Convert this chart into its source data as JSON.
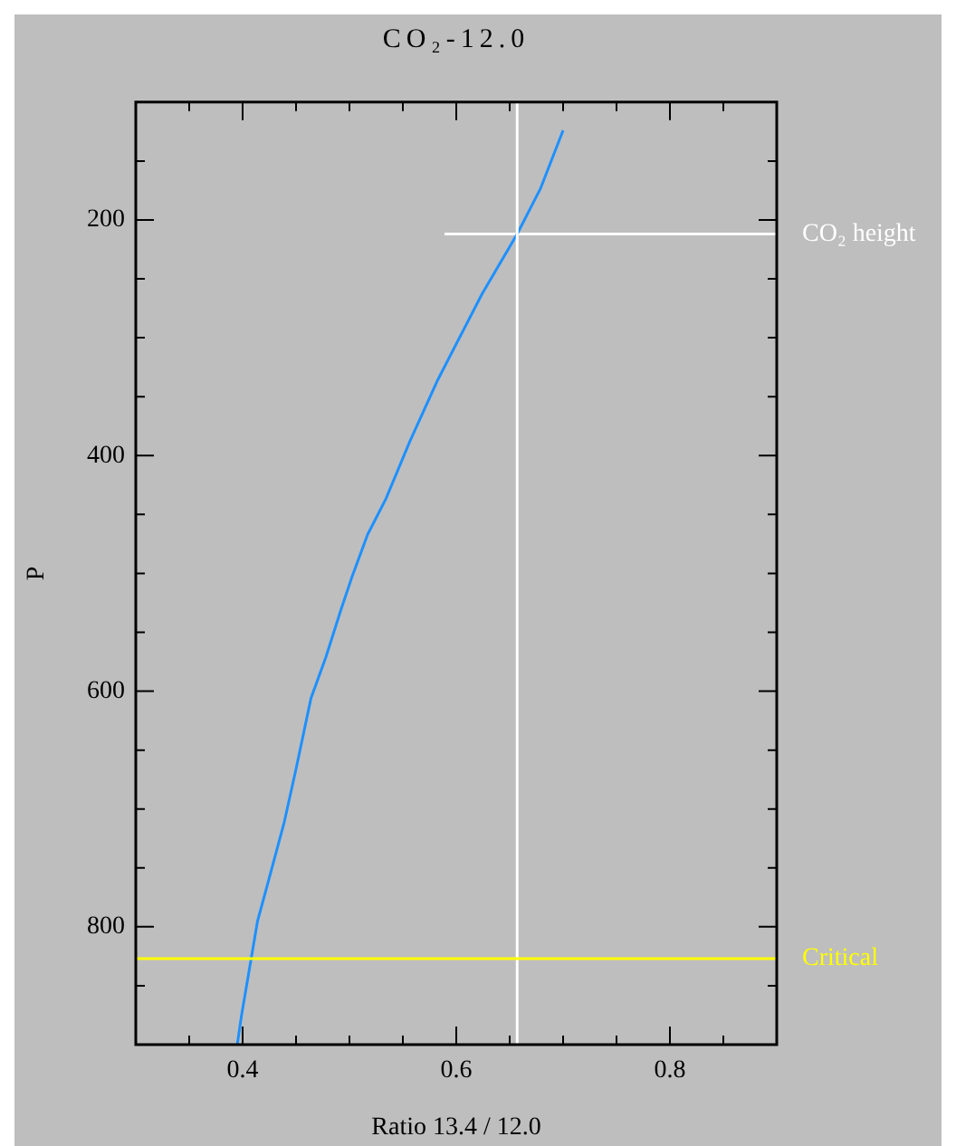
{
  "chart_data": {
    "type": "line",
    "title": "CO₂-12.0",
    "xlabel": "Ratio 13.4 / 12.0",
    "ylabel": "P",
    "xlim": [
      0.3,
      0.9
    ],
    "ylim": [
      900,
      100
    ],
    "xticks": [
      {
        "value": 0.35,
        "label": null
      },
      0.4,
      {
        "value": 0.45,
        "label": null
      },
      {
        "value": 0.5,
        "label": null
      },
      {
        "value": 0.55,
        "label": null
      },
      0.6,
      {
        "value": 0.65,
        "label": null
      },
      {
        "value": 0.7,
        "label": null
      },
      {
        "value": 0.75,
        "label": null
      },
      0.8,
      {
        "value": 0.85,
        "label": null
      }
    ],
    "yticks": [
      {
        "value": 150,
        "label": null
      },
      200,
      {
        "value": 250,
        "label": null
      },
      {
        "value": 300,
        "label": null
      },
      {
        "value": 350,
        "label": null
      },
      400,
      {
        "value": 450,
        "label": null
      },
      {
        "value": 500,
        "label": null
      },
      {
        "value": 550,
        "label": null
      },
      600,
      {
        "value": 650,
        "label": null
      },
      {
        "value": 700,
        "label": null
      },
      {
        "value": 750,
        "label": null
      },
      800,
      {
        "value": 850,
        "label": null
      }
    ],
    "series": [
      {
        "color": "#1e90ff",
        "x": [
          0.7,
          0.679,
          0.657,
          0.624,
          0.582,
          0.557,
          0.534,
          0.517,
          0.502,
          0.492,
          0.478,
          0.464,
          0.45,
          0.439,
          0.423,
          0.414,
          0.408,
          0.399,
          0.395
        ],
        "values": [
          124,
          173,
          212,
          263,
          337,
          387,
          437,
          467,
          504,
          531,
          571,
          606,
          666,
          711,
          765,
          795,
          827,
          875,
          900
        ]
      },
      {
        "name": "CO₂ height",
        "color": "#ffffff",
        "x": [
          0.589,
          0.9
        ],
        "values": [
          212,
          212
        ]
      }
    ],
    "ref_lines": [
      {
        "axis": "x",
        "value": 0.657,
        "color": "#ffffff"
      },
      {
        "axis": "y",
        "value": 827,
        "label": "Critical",
        "color": "#ffff00"
      }
    ]
  }
}
